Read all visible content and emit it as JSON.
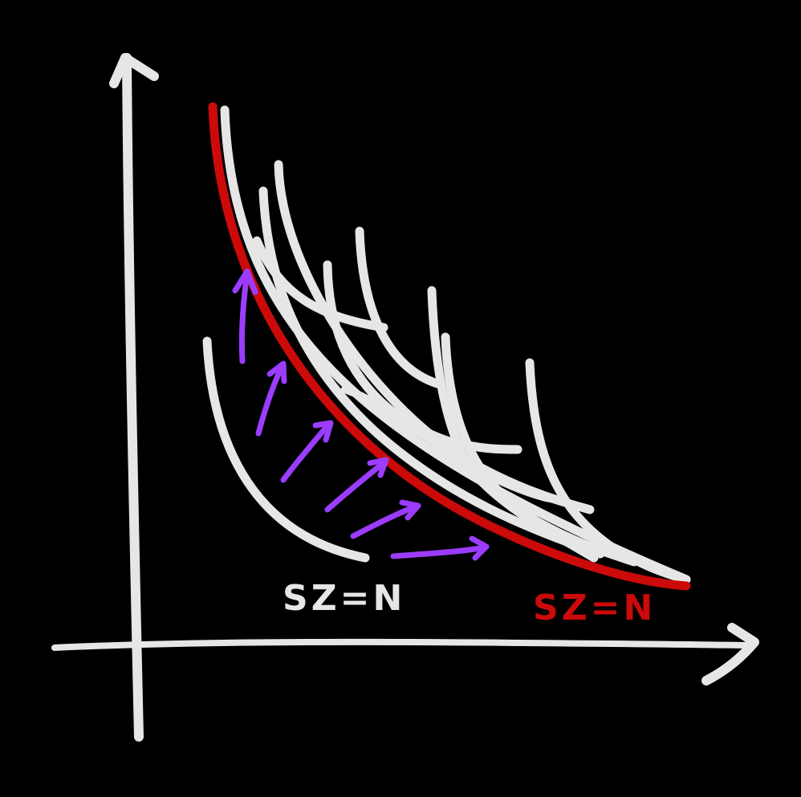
{
  "diagram": {
    "colors": {
      "background": "#000000",
      "chalk": "#e6e6e6",
      "highlight": "#cc0a0a",
      "arrows": "#9b3cff"
    },
    "labels": {
      "inner_curve": "SZ=N",
      "red_curve": "SZ=N"
    }
  }
}
